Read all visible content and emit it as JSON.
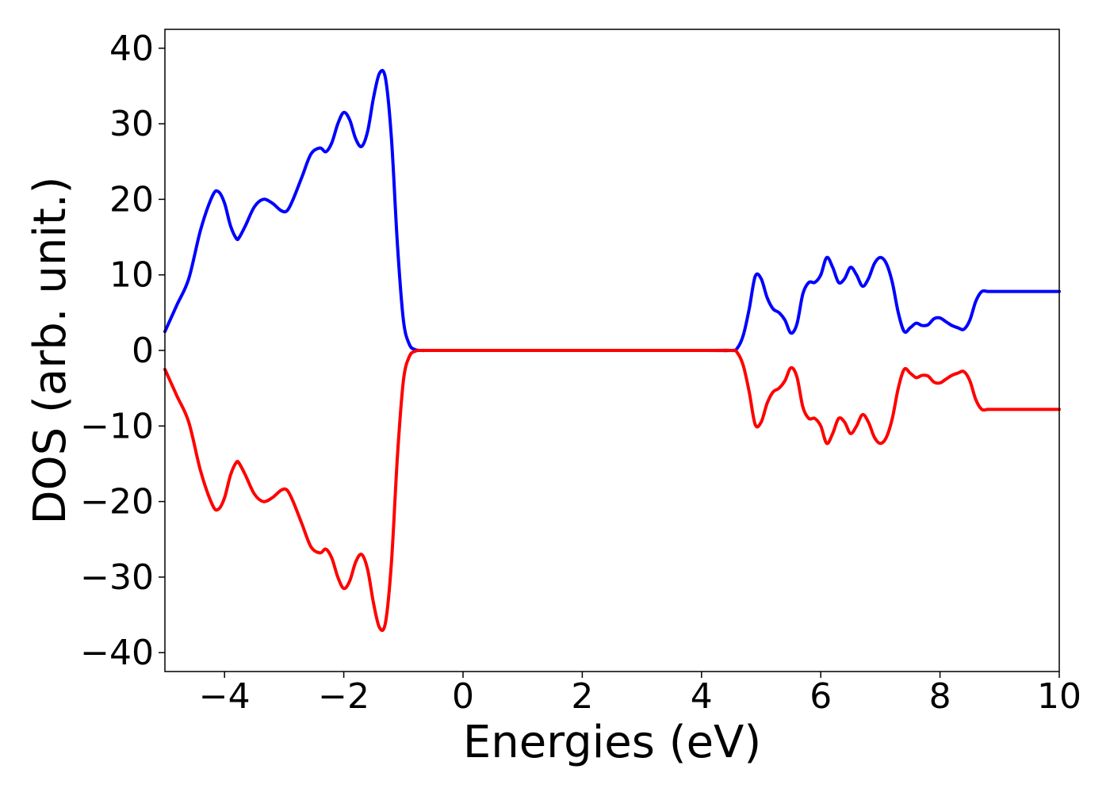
{
  "chart_data": {
    "type": "line",
    "title": "",
    "xlabel": "Energies (eV)",
    "ylabel": "DOS (arb. unit.)",
    "xlim": [
      -5,
      10
    ],
    "ylim": [
      -42.5,
      42.5
    ],
    "x_ticks": [
      -4,
      -2,
      0,
      2,
      4,
      6,
      8,
      10
    ],
    "x_tick_labels": [
      "−4",
      "−2",
      "0",
      "2",
      "4",
      "6",
      "8",
      "10"
    ],
    "y_ticks": [
      40,
      30,
      20,
      10,
      0,
      -10,
      -20,
      -30,
      -40
    ],
    "y_tick_labels": [
      "40",
      "30",
      "20",
      "10",
      "0",
      "−10",
      "−20",
      "−30",
      "−40"
    ],
    "grid": false,
    "legend": "none",
    "series": [
      {
        "color": "#0000ff",
        "x": [
          -5.0,
          -4.8,
          -4.6,
          -4.4,
          -4.2,
          -4.1,
          -4.0,
          -3.9,
          -3.8,
          -3.75,
          -3.65,
          -3.5,
          -3.35,
          -3.2,
          -3.05,
          -2.95,
          -2.85,
          -2.7,
          -2.55,
          -2.4,
          -2.3,
          -2.2,
          -2.1,
          -2.0,
          -1.9,
          -1.8,
          -1.7,
          -1.6,
          -1.5,
          -1.4,
          -1.3,
          -1.2,
          -1.1,
          -1.0,
          -0.9,
          -0.8,
          -0.7,
          -0.6,
          -0.5,
          0.0,
          2.0,
          4.0,
          4.5,
          4.6,
          4.7,
          4.8,
          4.9,
          5.0,
          5.1,
          5.2,
          5.3,
          5.4,
          5.5,
          5.6,
          5.7,
          5.8,
          5.9,
          6.0,
          6.1,
          6.2,
          6.3,
          6.4,
          6.5,
          6.6,
          6.7,
          6.8,
          6.9,
          7.0,
          7.1,
          7.2,
          7.3,
          7.4,
          7.5,
          7.6,
          7.7,
          7.8,
          7.9,
          8.0,
          8.1,
          8.2,
          8.3,
          8.4,
          8.5,
          8.6,
          8.7,
          8.8,
          8.9,
          9.0,
          9.2,
          9.4,
          9.6,
          9.8,
          10.0
        ],
        "values": [
          2.5,
          6.0,
          9.5,
          16.0,
          20.5,
          21.0,
          19.5,
          16.5,
          14.8,
          15.0,
          16.5,
          19.0,
          20.0,
          19.5,
          18.5,
          18.5,
          20.0,
          23.0,
          26.0,
          26.8,
          26.3,
          27.5,
          30.0,
          31.5,
          30.5,
          28.0,
          27.0,
          29.0,
          33.5,
          36.7,
          36.0,
          28.0,
          14.0,
          4.0,
          0.8,
          0.1,
          0.0,
          0.0,
          0.0,
          0.0,
          0.0,
          0.0,
          0.0,
          0.3,
          2.0,
          5.5,
          9.8,
          9.5,
          7.0,
          5.5,
          5.0,
          4.0,
          2.3,
          3.5,
          7.5,
          9.0,
          9.0,
          10.0,
          12.3,
          11.0,
          9.0,
          9.5,
          11.0,
          10.0,
          8.5,
          9.5,
          11.5,
          12.3,
          11.5,
          9.0,
          5.0,
          2.5,
          3.0,
          3.6,
          3.3,
          3.4,
          4.2,
          4.3,
          3.8,
          3.3,
          3.0,
          2.8,
          4.0,
          6.5,
          7.8,
          7.8,
          7.8,
          7.8,
          7.8,
          7.8,
          7.8,
          7.8,
          7.8
        ]
      },
      {
        "color": "#ff0000",
        "x": [
          -5.0,
          -4.8,
          -4.6,
          -4.4,
          -4.2,
          -4.1,
          -4.0,
          -3.9,
          -3.8,
          -3.75,
          -3.65,
          -3.5,
          -3.35,
          -3.2,
          -3.05,
          -2.95,
          -2.85,
          -2.7,
          -2.55,
          -2.4,
          -2.3,
          -2.2,
          -2.1,
          -2.0,
          -1.9,
          -1.8,
          -1.7,
          -1.6,
          -1.5,
          -1.4,
          -1.3,
          -1.2,
          -1.1,
          -1.0,
          -0.9,
          -0.8,
          -0.7,
          -0.6,
          -0.5,
          0.0,
          2.0,
          4.0,
          4.5,
          4.6,
          4.7,
          4.8,
          4.9,
          5.0,
          5.1,
          5.2,
          5.3,
          5.4,
          5.5,
          5.6,
          5.7,
          5.8,
          5.9,
          6.0,
          6.1,
          6.2,
          6.3,
          6.4,
          6.5,
          6.6,
          6.7,
          6.8,
          6.9,
          7.0,
          7.1,
          7.2,
          7.3,
          7.4,
          7.5,
          7.6,
          7.7,
          7.8,
          7.9,
          8.0,
          8.1,
          8.2,
          8.3,
          8.4,
          8.5,
          8.6,
          8.7,
          8.8,
          8.9,
          9.0,
          9.2,
          9.4,
          9.6,
          9.8,
          10.0
        ],
        "values": [
          -2.5,
          -6.0,
          -9.5,
          -16.0,
          -20.5,
          -21.0,
          -19.5,
          -16.5,
          -14.8,
          -15.0,
          -16.5,
          -19.0,
          -20.0,
          -19.5,
          -18.5,
          -18.5,
          -20.0,
          -23.0,
          -26.0,
          -26.8,
          -26.3,
          -27.5,
          -30.0,
          -31.5,
          -30.5,
          -28.0,
          -27.0,
          -29.0,
          -33.5,
          -36.7,
          -36.0,
          -28.0,
          -14.0,
          -4.0,
          -0.8,
          -0.1,
          0.0,
          0.0,
          0.0,
          0.0,
          0.0,
          0.0,
          0.0,
          -0.3,
          -2.0,
          -5.5,
          -9.8,
          -9.5,
          -7.0,
          -5.5,
          -5.0,
          -4.0,
          -2.3,
          -3.5,
          -7.5,
          -9.0,
          -9.0,
          -10.0,
          -12.3,
          -11.0,
          -9.0,
          -9.5,
          -11.0,
          -10.0,
          -8.5,
          -9.5,
          -11.5,
          -12.3,
          -11.5,
          -9.0,
          -5.0,
          -2.5,
          -3.0,
          -3.6,
          -3.3,
          -3.4,
          -4.2,
          -4.3,
          -3.8,
          -3.3,
          -3.0,
          -2.8,
          -4.0,
          -6.5,
          -7.8,
          -7.8,
          -7.8,
          -7.8,
          -7.8,
          -7.8,
          -7.8,
          -7.8,
          -7.8
        ]
      }
    ]
  }
}
